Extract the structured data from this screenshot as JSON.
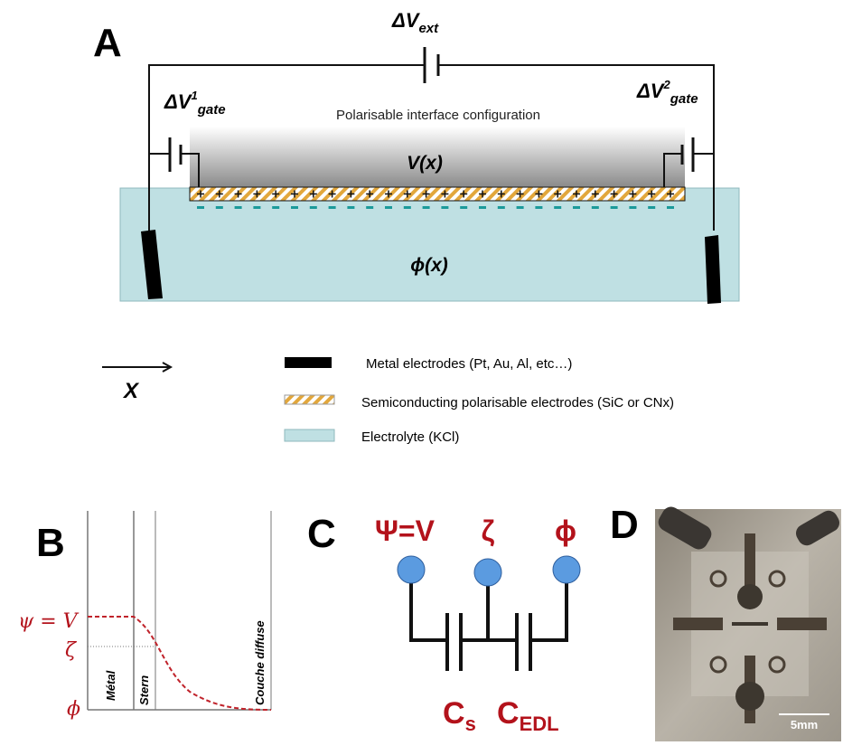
{
  "panel_a": {
    "letter": "A",
    "v_ext": {
      "symbol": "ΔV",
      "sub": "ext"
    },
    "v_gate_1": {
      "symbol": "ΔV",
      "sup": "1",
      "sub": "gate"
    },
    "v_gate_2": {
      "symbol": "ΔV",
      "sup": "2",
      "sub": "gate"
    },
    "caption": "Polarisable interface configuration",
    "potential_top": "V(x)",
    "potential_bottom": "ϕ(x)",
    "axis": "X",
    "legend": [
      "Metal electrodes (Pt, Au, Al, etc…)",
      "Semiconducting polarisable electrodes (SiC or CNx)",
      "Electrolyte (KCl)"
    ]
  },
  "panel_b": {
    "letter": "B",
    "labels": {
      "psi": "ψ = V",
      "zeta": "ζ",
      "phi": "ϕ"
    },
    "regions": [
      "Métal",
      "Stern",
      "Couche diffuse"
    ]
  },
  "panel_c": {
    "letter": "C",
    "nodes": [
      "Ψ=V",
      "ζ",
      "ϕ"
    ],
    "cap_s": {
      "symbol": "C",
      "sub": "s"
    },
    "cap_edl": {
      "symbol": "C",
      "sub": "EDL"
    }
  },
  "panel_d": {
    "letter": "D",
    "scale": "5mm"
  }
}
